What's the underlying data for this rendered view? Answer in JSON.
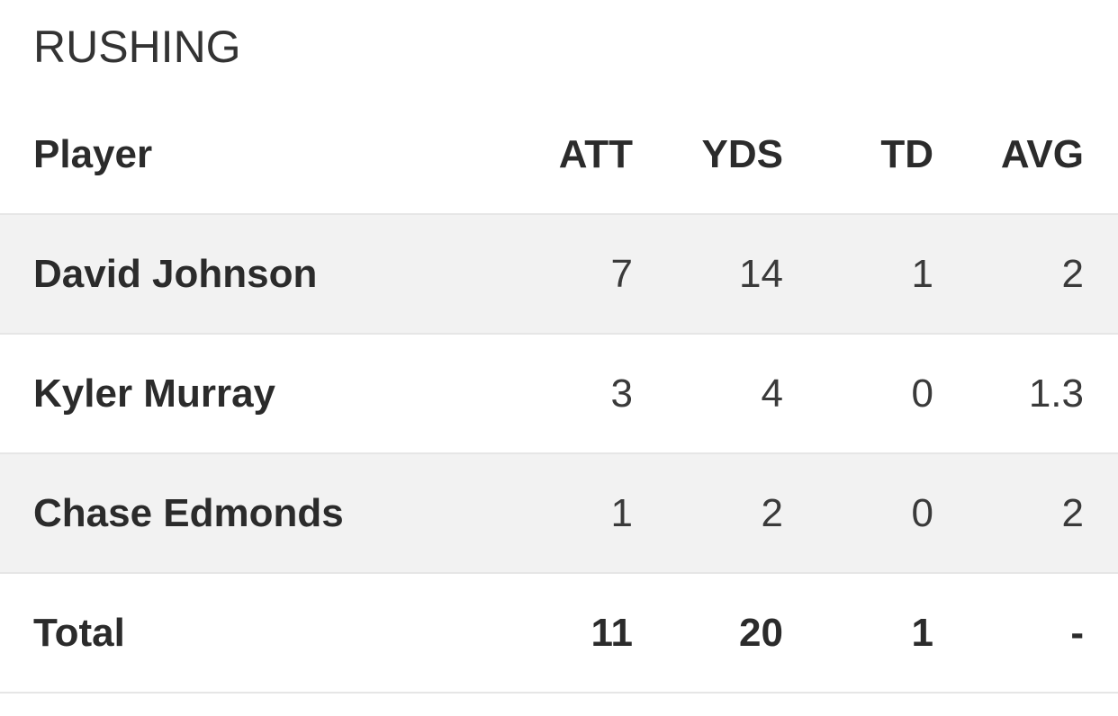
{
  "section": {
    "title": "RUSHING"
  },
  "columns": {
    "player": "Player",
    "att": "ATT",
    "yds": "YDS",
    "td": "TD",
    "avg": "AVG"
  },
  "rows": [
    {
      "player": "David Johnson",
      "att": "7",
      "yds": "14",
      "td": "1",
      "avg": "2"
    },
    {
      "player": "Kyler Murray",
      "att": "3",
      "yds": "4",
      "td": "0",
      "avg": "1.3"
    },
    {
      "player": "Chase Edmonds",
      "att": "1",
      "yds": "2",
      "td": "0",
      "avg": "2"
    }
  ],
  "total": {
    "label": "Total",
    "att": "11",
    "yds": "20",
    "td": "1",
    "avg": "-"
  },
  "colors": {
    "shaded_row": "#f2f2f2",
    "divider": "#e6e6e6"
  }
}
